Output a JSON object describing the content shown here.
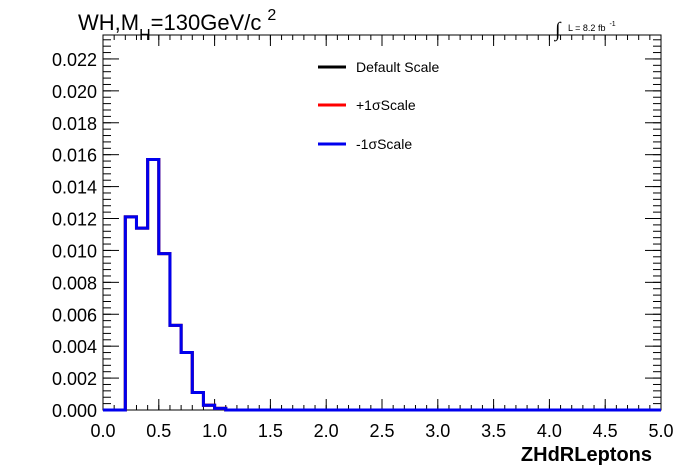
{
  "title": {
    "main": "WH,M",
    "sub": "H",
    "value": "=130GeV/c",
    "sup": "2"
  },
  "lumi": {
    "integral_symbol": "∫",
    "text": "L = 8.2 fb",
    "sup": "-1"
  },
  "chart_data": {
    "type": "line",
    "xlabel": "ZHdRLeptons",
    "ylabel": "",
    "xlim": [
      0.0,
      5.0
    ],
    "ylim": [
      0.0,
      0.0235
    ],
    "x_ticks": [
      "0.0",
      "0.5",
      "1.0",
      "1.5",
      "2.0",
      "2.5",
      "3.0",
      "3.5",
      "4.0",
      "4.5",
      "5.0"
    ],
    "y_ticks": [
      "0.000",
      "0.002",
      "0.004",
      "0.006",
      "0.008",
      "0.010",
      "0.012",
      "0.014",
      "0.016",
      "0.018",
      "0.020",
      "0.022"
    ],
    "grid": false,
    "legend_position": "top-center",
    "bin_width": 0.1,
    "bin_edges_start": 0.0,
    "series": [
      {
        "name": "Default Scale",
        "color": "#000000",
        "values": [
          0,
          0,
          0.0121,
          0.0114,
          0.0157,
          0.0098,
          0.0053,
          0.0036,
          0.0011,
          0.0003,
          0.0001,
          0,
          0,
          0,
          0,
          0,
          0,
          0,
          0,
          0,
          0,
          0,
          0,
          0,
          0,
          0,
          0,
          0,
          0,
          0,
          0,
          0,
          0,
          0,
          0,
          0,
          0,
          0,
          0,
          0,
          0,
          0,
          0,
          0,
          0,
          0,
          0,
          0,
          0,
          0
        ]
      },
      {
        "name": "+1σScale",
        "color": "#ff0000",
        "values": [
          0,
          0,
          0.0121,
          0.0114,
          0.0157,
          0.0098,
          0.0053,
          0.0036,
          0.0011,
          0.0003,
          0.0001,
          0,
          0,
          0,
          0,
          0,
          0,
          0,
          0,
          0,
          0,
          0,
          0,
          0,
          0,
          0,
          0,
          0,
          0,
          0,
          0,
          0,
          0,
          0,
          0,
          0,
          0,
          0,
          0,
          0,
          0,
          0,
          0,
          0,
          0,
          0,
          0,
          0,
          0,
          0
        ]
      },
      {
        "name": "-1σScale",
        "color": "#0000ee",
        "values": [
          0,
          0,
          0.0121,
          0.0114,
          0.0157,
          0.0098,
          0.0053,
          0.0036,
          0.0011,
          0.0003,
          0.0001,
          0,
          0,
          0,
          0,
          0,
          0,
          0,
          0,
          0,
          0,
          0,
          0,
          0,
          0,
          0,
          0,
          0,
          0,
          0,
          0,
          0,
          0,
          0,
          0,
          0,
          0,
          0,
          0,
          0,
          0,
          0,
          0,
          0,
          0,
          0,
          0,
          0,
          0,
          0
        ]
      }
    ]
  }
}
